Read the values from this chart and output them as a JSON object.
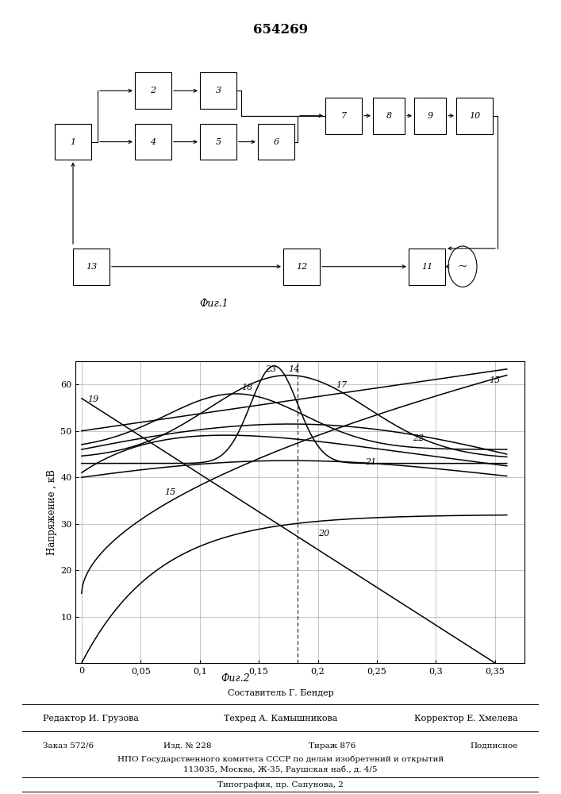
{
  "title": "654269",
  "fig1_label": "Фиг.1",
  "fig2_label": "Фиг.2",
  "ylabel": "Напряжение , кВ",
  "xlabel_ticks": [
    0,
    0.05,
    0.1,
    0.15,
    0.2,
    0.25,
    0.3,
    0.35
  ],
  "yticks": [
    0,
    10,
    20,
    30,
    40,
    50,
    60
  ],
  "ylim": [
    0,
    65
  ],
  "xlim": [
    -0.005,
    0.375
  ],
  "line_color": "#111111",
  "grid_color": "#999999",
  "footer_line1": "Составитель Г. Бендер",
  "footer_line2_left": "Редактор И. Грузова",
  "footer_line2_center": "Техред А. Камышникова",
  "footer_line2_right": "Корректор Е. Хмелева",
  "footer_line3_left": "Заказ 572/6",
  "footer_line3_c1": "Изд. № 228",
  "footer_line3_c2": "Тираж 876",
  "footer_line3_right": "Подписное",
  "footer_line4": "НПО Государственного комитета СССР по делам изобретений и открытий",
  "footer_line5": "113035, Москва, Ж-35, Раушская наб., д. 4/5",
  "footer_line6": "Типография, пр. Сапунова, 2"
}
